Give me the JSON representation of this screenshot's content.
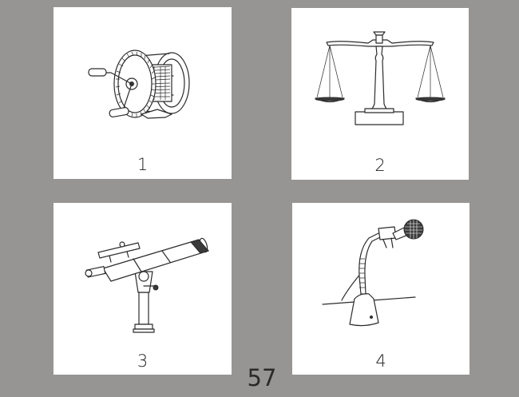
{
  "cards": [
    {
      "number": "1",
      "icon": "fishing-reel-icon"
    },
    {
      "number": "2",
      "icon": "balance-scale-icon"
    },
    {
      "number": "3",
      "icon": "telescope-icon"
    },
    {
      "number": "4",
      "icon": "microphone-stand-icon"
    }
  ],
  "page_number": "57",
  "colors": {
    "background": "#979593",
    "card": "#ffffff",
    "ink": "#2b2b2b"
  }
}
